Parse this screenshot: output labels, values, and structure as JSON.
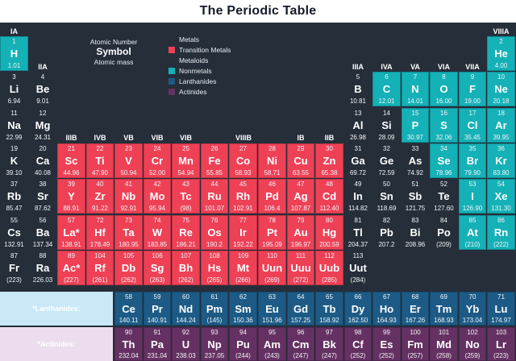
{
  "title": "The Periodic Table",
  "key": {
    "atomic_number_label": "Atomic Number",
    "symbol_label": "Symbol",
    "atomic_mass_label": "Atomic mass"
  },
  "colors": {
    "background": "#262e3a",
    "metal": "transparent",
    "metalloid": "transparent",
    "transition": "#ee4156",
    "nonmetal": "#14b1b7",
    "lanthanide": "#1d5b86",
    "actinide": "#653163",
    "lanthanide_label_bg": "#c9e8f8",
    "actinide_label_bg": "#eddcee",
    "title_bg": "#ffffff",
    "title_text": "#141b29"
  },
  "legend": [
    {
      "label": "Metals",
      "cat": "metal"
    },
    {
      "label": "Transition Metals",
      "cat": "transition"
    },
    {
      "label": "Metaloids",
      "cat": "metalloid"
    },
    {
      "label": "Nonmetals",
      "cat": "nonmetal"
    },
    {
      "label": "Lanthanides",
      "cat": "lanthanide"
    },
    {
      "label": "Actinides",
      "cat": "actinide"
    }
  ],
  "group_headers": [
    {
      "label": "IA",
      "col": 1,
      "span": 1,
      "level": 1
    },
    {
      "label": "VIIIA",
      "col": 18,
      "span": 1,
      "level": 1
    },
    {
      "label": "IIA",
      "col": 2,
      "span": 1,
      "level": 2
    },
    {
      "label": "IIIA",
      "col": 13,
      "span": 1,
      "level": 2
    },
    {
      "label": "IVA",
      "col": 14,
      "span": 1,
      "level": 2
    },
    {
      "label": "VA",
      "col": 15,
      "span": 1,
      "level": 2
    },
    {
      "label": "VIA",
      "col": 16,
      "span": 1,
      "level": 2
    },
    {
      "label": "VIIA",
      "col": 17,
      "span": 1,
      "level": 2
    },
    {
      "label": "IIIB",
      "col": 3,
      "span": 1,
      "level": 3
    },
    {
      "label": "IVB",
      "col": 4,
      "span": 1,
      "level": 3
    },
    {
      "label": "VB",
      "col": 5,
      "span": 1,
      "level": 3
    },
    {
      "label": "VIB",
      "col": 6,
      "span": 1,
      "level": 3
    },
    {
      "label": "VIB",
      "col": 7,
      "span": 1,
      "level": 3
    },
    {
      "label": "VIIIB",
      "col": 8,
      "span": 3,
      "level": 3
    },
    {
      "label": "IB",
      "col": 11,
      "span": 1,
      "level": 3
    },
    {
      "label": "IIB",
      "col": 12,
      "span": 1,
      "level": 3
    }
  ],
  "series_labels": {
    "lanthanides": "*Lanthanides:",
    "actinides": "*Actinides:"
  },
  "elements": [
    {
      "n": "1",
      "s": "H",
      "m": "1.01",
      "r": 1,
      "c": 1,
      "cat": "nonmetal"
    },
    {
      "n": "2",
      "s": "He",
      "m": "4.00",
      "r": 1,
      "c": 18,
      "cat": "nonmetal"
    },
    {
      "n": "3",
      "s": "Li",
      "m": "6.94",
      "r": 2,
      "c": 1,
      "cat": "metal"
    },
    {
      "n": "4",
      "s": "Be",
      "m": "9.01",
      "r": 2,
      "c": 2,
      "cat": "metal"
    },
    {
      "n": "5",
      "s": "B",
      "m": "10.81",
      "r": 2,
      "c": 13,
      "cat": "metalloid"
    },
    {
      "n": "6",
      "s": "C",
      "m": "12.01",
      "r": 2,
      "c": 14,
      "cat": "nonmetal"
    },
    {
      "n": "7",
      "s": "N",
      "m": "14.01",
      "r": 2,
      "c": 15,
      "cat": "nonmetal"
    },
    {
      "n": "8",
      "s": "O",
      "m": "16.00",
      "r": 2,
      "c": 16,
      "cat": "nonmetal"
    },
    {
      "n": "9",
      "s": "F",
      "m": "19.00",
      "r": 2,
      "c": 17,
      "cat": "nonmetal"
    },
    {
      "n": "10",
      "s": "Ne",
      "m": "20.18",
      "r": 2,
      "c": 18,
      "cat": "nonmetal"
    },
    {
      "n": "11",
      "s": "Na",
      "m": "22.99",
      "r": 3,
      "c": 1,
      "cat": "metal"
    },
    {
      "n": "12",
      "s": "Mg",
      "m": "24.31",
      "r": 3,
      "c": 2,
      "cat": "metal"
    },
    {
      "n": "13",
      "s": "Al",
      "m": "26.98",
      "r": 3,
      "c": 13,
      "cat": "metal"
    },
    {
      "n": "14",
      "s": "Si",
      "m": "28.09",
      "r": 3,
      "c": 14,
      "cat": "metalloid"
    },
    {
      "n": "15",
      "s": "P",
      "m": "30.97",
      "r": 3,
      "c": 15,
      "cat": "nonmetal"
    },
    {
      "n": "16",
      "s": "S",
      "m": "32.06",
      "r": 3,
      "c": 16,
      "cat": "nonmetal"
    },
    {
      "n": "17",
      "s": "Cl",
      "m": "35.45",
      "r": 3,
      "c": 17,
      "cat": "nonmetal"
    },
    {
      "n": "18",
      "s": "Ar",
      "m": "39.95",
      "r": 3,
      "c": 18,
      "cat": "nonmetal"
    },
    {
      "n": "19",
      "s": "K",
      "m": "39.10",
      "r": 4,
      "c": 1,
      "cat": "metal"
    },
    {
      "n": "20",
      "s": "Ca",
      "m": "40.08",
      "r": 4,
      "c": 2,
      "cat": "metal"
    },
    {
      "n": "21",
      "s": "Sc",
      "m": "44.96",
      "r": 4,
      "c": 3,
      "cat": "transition"
    },
    {
      "n": "22",
      "s": "Ti",
      "m": "47.90",
      "r": 4,
      "c": 4,
      "cat": "transition"
    },
    {
      "n": "23",
      "s": "V",
      "m": "50.94",
      "r": 4,
      "c": 5,
      "cat": "transition"
    },
    {
      "n": "24",
      "s": "Cr",
      "m": "52.00",
      "r": 4,
      "c": 6,
      "cat": "transition"
    },
    {
      "n": "25",
      "s": "Mn",
      "m": "54.94",
      "r": 4,
      "c": 7,
      "cat": "transition"
    },
    {
      "n": "26",
      "s": "Fe",
      "m": "55.85",
      "r": 4,
      "c": 8,
      "cat": "transition"
    },
    {
      "n": "27",
      "s": "Co",
      "m": "58.93",
      "r": 4,
      "c": 9,
      "cat": "transition"
    },
    {
      "n": "28",
      "s": "Ni",
      "m": "58.71",
      "r": 4,
      "c": 10,
      "cat": "transition"
    },
    {
      "n": "29",
      "s": "Cu",
      "m": "63.55",
      "r": 4,
      "c": 11,
      "cat": "transition"
    },
    {
      "n": "30",
      "s": "Zn",
      "m": "65.38",
      "r": 4,
      "c": 12,
      "cat": "transition"
    },
    {
      "n": "31",
      "s": "Ga",
      "m": "69.72",
      "r": 4,
      "c": 13,
      "cat": "metal"
    },
    {
      "n": "32",
      "s": "Ge",
      "m": "72.59",
      "r": 4,
      "c": 14,
      "cat": "metalloid"
    },
    {
      "n": "33",
      "s": "As",
      "m": "74.92",
      "r": 4,
      "c": 15,
      "cat": "metalloid"
    },
    {
      "n": "34",
      "s": "Se",
      "m": "78.96",
      "r": 4,
      "c": 16,
      "cat": "nonmetal"
    },
    {
      "n": "35",
      "s": "Br",
      "m": "79.90",
      "r": 4,
      "c": 17,
      "cat": "nonmetal"
    },
    {
      "n": "36",
      "s": "Kr",
      "m": "83.80",
      "r": 4,
      "c": 18,
      "cat": "nonmetal"
    },
    {
      "n": "37",
      "s": "Rb",
      "m": "85.47",
      "r": 5,
      "c": 1,
      "cat": "metal"
    },
    {
      "n": "38",
      "s": "Sr",
      "m": "87.62",
      "r": 5,
      "c": 2,
      "cat": "metal"
    },
    {
      "n": "39",
      "s": "Y",
      "m": "88.91",
      "r": 5,
      "c": 3,
      "cat": "transition"
    },
    {
      "n": "40",
      "s": "Zr",
      "m": "91.22",
      "r": 5,
      "c": 4,
      "cat": "transition"
    },
    {
      "n": "41",
      "s": "Nb",
      "m": "92.91",
      "r": 5,
      "c": 5,
      "cat": "transition"
    },
    {
      "n": "42",
      "s": "Mo",
      "m": "95.94",
      "r": 5,
      "c": 6,
      "cat": "transition"
    },
    {
      "n": "43",
      "s": "Tc",
      "m": "(98)",
      "r": 5,
      "c": 7,
      "cat": "transition"
    },
    {
      "n": "44",
      "s": "Ru",
      "m": "101.07",
      "r": 5,
      "c": 8,
      "cat": "transition"
    },
    {
      "n": "45",
      "s": "Rh",
      "m": "102.91",
      "r": 5,
      "c": 9,
      "cat": "transition"
    },
    {
      "n": "46",
      "s": "Pd",
      "m": "106.4",
      "r": 5,
      "c": 10,
      "cat": "transition"
    },
    {
      "n": "47",
      "s": "Ag",
      "m": "107.87",
      "r": 5,
      "c": 11,
      "cat": "transition"
    },
    {
      "n": "48",
      "s": "Cd",
      "m": "112.40",
      "r": 5,
      "c": 12,
      "cat": "transition"
    },
    {
      "n": "49",
      "s": "In",
      "m": "114.82",
      "r": 5,
      "c": 13,
      "cat": "metal"
    },
    {
      "n": "50",
      "s": "Sn",
      "m": "118.69",
      "r": 5,
      "c": 14,
      "cat": "metal"
    },
    {
      "n": "51",
      "s": "Sb",
      "m": "121.75",
      "r": 5,
      "c": 15,
      "cat": "metalloid"
    },
    {
      "n": "52",
      "s": "Te",
      "m": "127.60",
      "r": 5,
      "c": 16,
      "cat": "metalloid"
    },
    {
      "n": "53",
      "s": "I",
      "m": "126.90",
      "r": 5,
      "c": 17,
      "cat": "nonmetal"
    },
    {
      "n": "54",
      "s": "Xe",
      "m": "131.30",
      "r": 5,
      "c": 18,
      "cat": "nonmetal"
    },
    {
      "n": "55",
      "s": "Cs",
      "m": "132.91",
      "r": 6,
      "c": 1,
      "cat": "metal"
    },
    {
      "n": "56",
      "s": "Ba",
      "m": "137.34",
      "r": 6,
      "c": 2,
      "cat": "metal"
    },
    {
      "n": "57",
      "s": "La*",
      "m": "138.91",
      "r": 6,
      "c": 3,
      "cat": "transition"
    },
    {
      "n": "72",
      "s": "Hf",
      "m": "178.49",
      "r": 6,
      "c": 4,
      "cat": "transition"
    },
    {
      "n": "73",
      "s": "Ta",
      "m": "180.95",
      "r": 6,
      "c": 5,
      "cat": "transition"
    },
    {
      "n": "74",
      "s": "W",
      "m": "183.85",
      "r": 6,
      "c": 6,
      "cat": "transition"
    },
    {
      "n": "75",
      "s": "Re",
      "m": "186.21",
      "r": 6,
      "c": 7,
      "cat": "transition"
    },
    {
      "n": "76",
      "s": "Os",
      "m": "190.2",
      "r": 6,
      "c": 8,
      "cat": "transition"
    },
    {
      "n": "77",
      "s": "Ir",
      "m": "192.22",
      "r": 6,
      "c": 9,
      "cat": "transition"
    },
    {
      "n": "78",
      "s": "Pt",
      "m": "195.09",
      "r": 6,
      "c": 10,
      "cat": "transition"
    },
    {
      "n": "79",
      "s": "Au",
      "m": "196.97",
      "r": 6,
      "c": 11,
      "cat": "transition"
    },
    {
      "n": "80",
      "s": "Hg",
      "m": "200.59",
      "r": 6,
      "c": 12,
      "cat": "transition"
    },
    {
      "n": "81",
      "s": "Tl",
      "m": "204.37",
      "r": 6,
      "c": 13,
      "cat": "metal"
    },
    {
      "n": "82",
      "s": "Pb",
      "m": "207.2",
      "r": 6,
      "c": 14,
      "cat": "metal"
    },
    {
      "n": "83",
      "s": "Bi",
      "m": "208.96",
      "r": 6,
      "c": 15,
      "cat": "metal"
    },
    {
      "n": "84",
      "s": "Po",
      "m": "(209)",
      "r": 6,
      "c": 16,
      "cat": "metal"
    },
    {
      "n": "85",
      "s": "At",
      "m": "(210)",
      "r": 6,
      "c": 17,
      "cat": "nonmetal"
    },
    {
      "n": "86",
      "s": "Rn",
      "m": "(222)",
      "r": 6,
      "c": 18,
      "cat": "nonmetal"
    },
    {
      "n": "87",
      "s": "Fr",
      "m": "(223)",
      "r": 7,
      "c": 1,
      "cat": "metal"
    },
    {
      "n": "88",
      "s": "Ra",
      "m": "226.03",
      "r": 7,
      "c": 2,
      "cat": "metal"
    },
    {
      "n": "89",
      "s": "Ac*",
      "m": "(227)",
      "r": 7,
      "c": 3,
      "cat": "transition"
    },
    {
      "n": "104",
      "s": "Rf",
      "m": "(261)",
      "r": 7,
      "c": 4,
      "cat": "transition"
    },
    {
      "n": "105",
      "s": "Db",
      "m": "(262)",
      "r": 7,
      "c": 5,
      "cat": "transition"
    },
    {
      "n": "106",
      "s": "Sg",
      "m": "(263)",
      "r": 7,
      "c": 6,
      "cat": "transition"
    },
    {
      "n": "107",
      "s": "Bh",
      "m": "(262)",
      "r": 7,
      "c": 7,
      "cat": "transition"
    },
    {
      "n": "108",
      "s": "Hs",
      "m": "(265)",
      "r": 7,
      "c": 8,
      "cat": "transition"
    },
    {
      "n": "109",
      "s": "Mt",
      "m": "(266)",
      "r": 7,
      "c": 9,
      "cat": "transition"
    },
    {
      "n": "110",
      "s": "Uun",
      "m": "(269)",
      "r": 7,
      "c": 10,
      "cat": "transition"
    },
    {
      "n": "111",
      "s": "Uuu",
      "m": "(272)",
      "r": 7,
      "c": 11,
      "cat": "transition"
    },
    {
      "n": "112",
      "s": "Uub",
      "m": "(285)",
      "r": 7,
      "c": 12,
      "cat": "transition"
    },
    {
      "n": "113",
      "s": "Uut",
      "m": "(284)",
      "r": 7,
      "c": 13,
      "cat": "metal"
    },
    {
      "n": "58",
      "s": "Ce",
      "m": "140.11",
      "r": 8,
      "c": 5,
      "cat": "lanthanide"
    },
    {
      "n": "59",
      "s": "Pr",
      "m": "140.91",
      "r": 8,
      "c": 6,
      "cat": "lanthanide"
    },
    {
      "n": "60",
      "s": "Nd",
      "m": "144.24",
      "r": 8,
      "c": 7,
      "cat": "lanthanide"
    },
    {
      "n": "61",
      "s": "Pm",
      "m": "(145)",
      "r": 8,
      "c": 8,
      "cat": "lanthanide"
    },
    {
      "n": "62",
      "s": "Sm",
      "m": "150.36",
      "r": 8,
      "c": 9,
      "cat": "lanthanide"
    },
    {
      "n": "63",
      "s": "Eu",
      "m": "151.96",
      "r": 8,
      "c": 10,
      "cat": "lanthanide"
    },
    {
      "n": "64",
      "s": "Gd",
      "m": "157.25",
      "r": 8,
      "c": 11,
      "cat": "lanthanide"
    },
    {
      "n": "65",
      "s": "Tb",
      "m": "158.92",
      "r": 8,
      "c": 12,
      "cat": "lanthanide"
    },
    {
      "n": "66",
      "s": "Dy",
      "m": "162.50",
      "r": 8,
      "c": 13,
      "cat": "lanthanide"
    },
    {
      "n": "67",
      "s": "Ho",
      "m": "164.93",
      "r": 8,
      "c": 14,
      "cat": "lanthanide"
    },
    {
      "n": "68",
      "s": "Er",
      "m": "167.26",
      "r": 8,
      "c": 15,
      "cat": "lanthanide"
    },
    {
      "n": "69",
      "s": "Tm",
      "m": "168.93",
      "r": 8,
      "c": 16,
      "cat": "lanthanide"
    },
    {
      "n": "70",
      "s": "Yb",
      "m": "173.04",
      "r": 8,
      "c": 17,
      "cat": "lanthanide"
    },
    {
      "n": "71",
      "s": "Lu",
      "m": "174.97",
      "r": 8,
      "c": 18,
      "cat": "lanthanide"
    },
    {
      "n": "90",
      "s": "Th",
      "m": "232.04",
      "r": 9,
      "c": 5,
      "cat": "actinide"
    },
    {
      "n": "91",
      "s": "Pa",
      "m": "231.04",
      "r": 9,
      "c": 6,
      "cat": "actinide"
    },
    {
      "n": "92",
      "s": "U",
      "m": "238.03",
      "r": 9,
      "c": 7,
      "cat": "actinide"
    },
    {
      "n": "93",
      "s": "Np",
      "m": "237.05",
      "r": 9,
      "c": 8,
      "cat": "actinide"
    },
    {
      "n": "94",
      "s": "Pu",
      "m": "(244)",
      "r": 9,
      "c": 9,
      "cat": "actinide"
    },
    {
      "n": "95",
      "s": "Am",
      "m": "(243)",
      "r": 9,
      "c": 10,
      "cat": "actinide"
    },
    {
      "n": "96",
      "s": "Cm",
      "m": "(247)",
      "r": 9,
      "c": 11,
      "cat": "actinide"
    },
    {
      "n": "97",
      "s": "Bk",
      "m": "(247)",
      "r": 9,
      "c": 12,
      "cat": "actinide"
    },
    {
      "n": "98",
      "s": "Cf",
      "m": "(252)",
      "r": 9,
      "c": 13,
      "cat": "actinide"
    },
    {
      "n": "99",
      "s": "Es",
      "m": "(252)",
      "r": 9,
      "c": 14,
      "cat": "actinide"
    },
    {
      "n": "100",
      "s": "Fm",
      "m": "(257)",
      "r": 9,
      "c": 15,
      "cat": "actinide"
    },
    {
      "n": "101",
      "s": "Md",
      "m": "(258)",
      "r": 9,
      "c": 16,
      "cat": "actinide"
    },
    {
      "n": "102",
      "s": "No",
      "m": "(259)",
      "r": 9,
      "c": 17,
      "cat": "actinide"
    },
    {
      "n": "103",
      "s": "Lr",
      "m": "(223)",
      "r": 9,
      "c": 18,
      "cat": "actinide"
    }
  ]
}
